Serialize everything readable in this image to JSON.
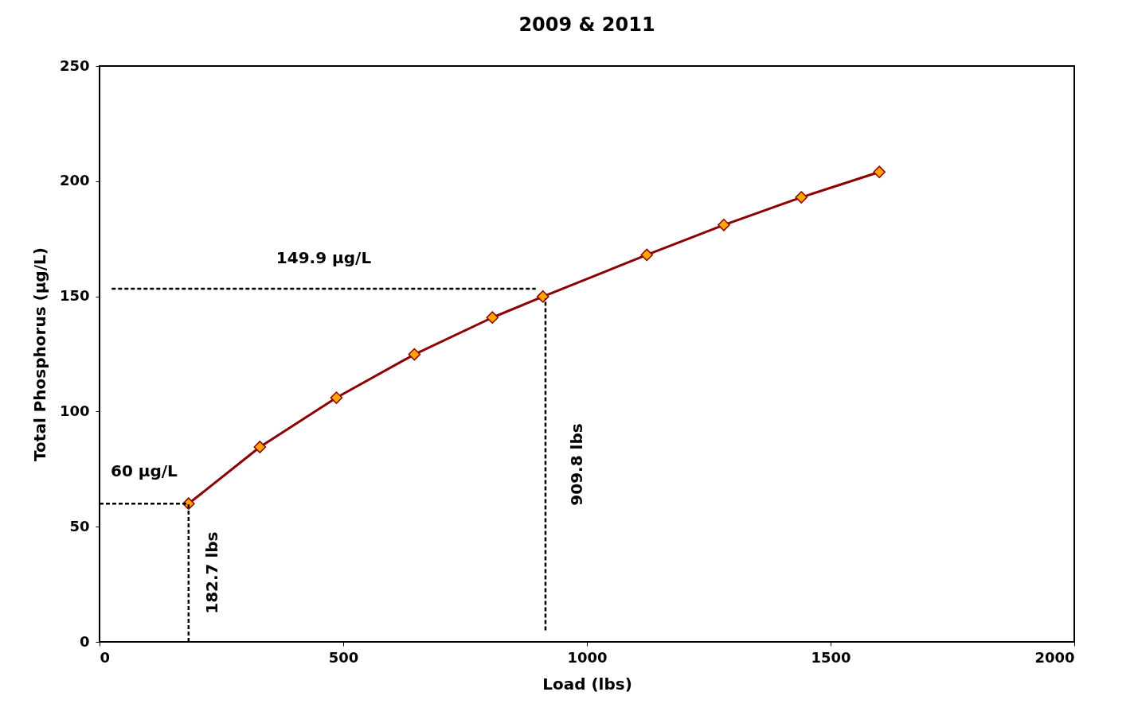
{
  "chart_data": {
    "type": "line",
    "title": "2009 & 2011",
    "xlabel": "Load (lbs)",
    "ylabel": "Total Phosphorus (µg/L)",
    "xlim": [
      0,
      2000
    ],
    "xticks": [
      0,
      500,
      1000,
      1500,
      2000
    ],
    "ylim": [
      0,
      250
    ],
    "yticks": [
      0,
      50,
      100,
      150,
      200,
      250
    ],
    "grid": false,
    "marker": "diamond",
    "line_style": "solid",
    "series": [
      {
        "color": "#8b0000",
        "x": [
          182.7,
          329,
          486,
          646,
          806,
          909.8,
          1123,
          1281,
          1440,
          1600
        ],
        "values": [
          60,
          84.6,
          106,
          124.8,
          140.8,
          149.9,
          168,
          181,
          193,
          204
        ]
      },
      {
        "type": "line",
        "color": "#000000",
        "marker": "none",
        "line_style": "dashed",
        "x": [
          0,
          182.7
        ],
        "values": [
          60,
          60
        ]
      },
      {
        "type": "line",
        "color": "#000000",
        "marker": "none",
        "line_style": "dashed",
        "x": [
          182.7,
          182.7
        ],
        "values": [
          0,
          60
        ]
      },
      {
        "type": "line",
        "color": "#000000",
        "marker": "none",
        "line_style": "dashed",
        "x": [
          25,
          895
        ],
        "values": [
          153.3,
          153.3
        ]
      },
      {
        "type": "line",
        "color": "#000000",
        "marker": "none",
        "line_style": "dashed",
        "x": [
          915,
          915
        ],
        "values": [
          5,
          149
        ]
      }
    ],
    "annotations": [
      "60 µg/L",
      "182.7 lbs",
      "149.9 µg/L",
      "909.8 lbs"
    ]
  }
}
